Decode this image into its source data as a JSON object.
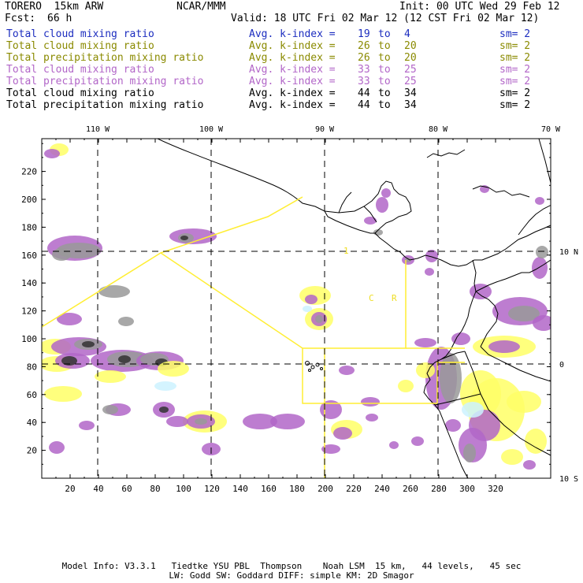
{
  "header": {
    "model": "TORERO  15km ARW",
    "org": "NCAR/MMM",
    "init": "Init: 00 UTC Wed 29 Feb 12",
    "fcst_label": "Fcst:",
    "fcst_value": "66 h",
    "valid": "Valid: 18 UTC Fri 02 Mar 12 (12 CST Fri 02 Mar 12)"
  },
  "legend": [
    {
      "field": "Total cloud mixing ratio",
      "kindex": "Avg. k-index =",
      "from": "19",
      "to_word": "to",
      "to": "4",
      "sm": "sm= 2",
      "color": "#1c2dbf"
    },
    {
      "field": "Total cloud mixing ratio",
      "kindex": "Avg. k-index =",
      "from": "26",
      "to_word": "to",
      "to": "20",
      "sm": "sm= 2",
      "color": "#8a8a00"
    },
    {
      "field": "Total precipitation mixing ratio",
      "kindex": "Avg. k-index =",
      "from": "26",
      "to_word": "to",
      "to": "20",
      "sm": "sm= 2",
      "color": "#8a8a00"
    },
    {
      "field": "Total cloud mixing ratio",
      "kindex": "Avg. k-index =",
      "from": "33",
      "to_word": "to",
      "to": "25",
      "sm": "sm= 2",
      "color": "#b266c8"
    },
    {
      "field": "Total precipitation mixing ratio",
      "kindex": "Avg. k-index =",
      "from": "33",
      "to_word": "to",
      "to": "25",
      "sm": "sm= 2",
      "color": "#b266c8"
    },
    {
      "field": "Total cloud mixing ratio",
      "kindex": "Avg. k-index =",
      "from": "44",
      "to_word": "to",
      "to": "34",
      "sm": "sm= 2",
      "color": "#000000"
    },
    {
      "field": "Total precipitation mixing ratio",
      "kindex": "Avg. k-index =",
      "from": "44",
      "to_word": "to",
      "to": "34",
      "sm": "sm= 2",
      "color": "#000000"
    }
  ],
  "map": {
    "x_ticks": [
      "20",
      "40",
      "60",
      "80",
      "100",
      "120",
      "140",
      "160",
      "180",
      "200",
      "220",
      "240",
      "260",
      "280",
      "300",
      "320"
    ],
    "y_ticks": [
      "20",
      "40",
      "60",
      "80",
      "100",
      "120",
      "140",
      "160",
      "180",
      "200",
      "220"
    ],
    "lon_labels": [
      "110 W",
      "100 W",
      "90 W",
      "80 W",
      "70 W"
    ],
    "lat_labels": [
      "10 N",
      "0",
      "10 S"
    ],
    "region_letters": [
      "1",
      "C",
      "R"
    ],
    "colors": {
      "purple": "#b266c8",
      "yellow": "#ffff66",
      "light_blue": "#ccf2ff",
      "dark_gray": "#333333",
      "gray": "#999999",
      "outline_yellow": "#ffee33"
    }
  },
  "footer": {
    "line1": "Model Info: V3.3.1   Tiedtke YSU PBL  Thompson    Noah LSM  15 km,   44 levels,   45 sec",
    "line2": "LW: Godd SW: Goddard DIFF: simple KM: 2D Smagor"
  }
}
